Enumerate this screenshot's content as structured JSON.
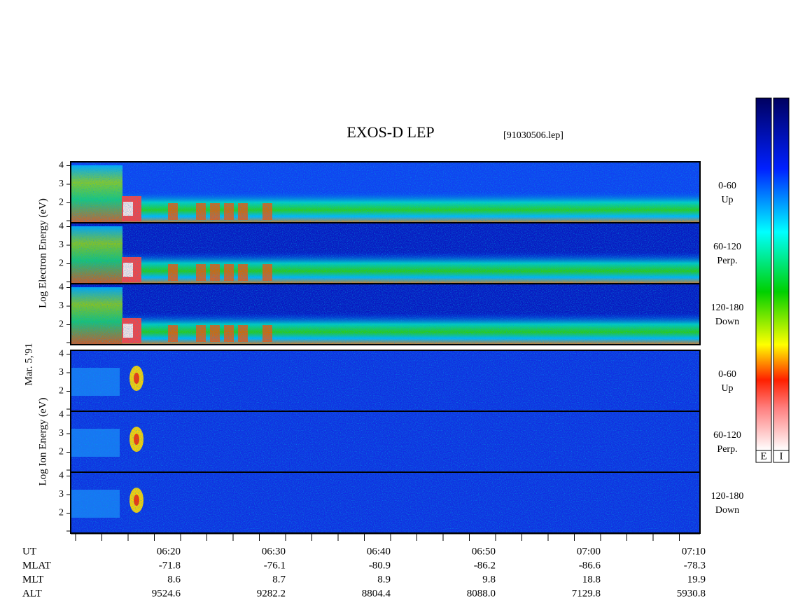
{
  "header": {
    "title": "EXOS-D LEP",
    "file": "[91030506.lep]",
    "date": "Mar. 5,'91"
  },
  "electron": {
    "ylabel": "Log   Electron   Energy (eV)",
    "panels": [
      {
        "angle": "0-60",
        "dir": "Up"
      },
      {
        "angle": "60-120",
        "dir": "Perp."
      },
      {
        "angle": "120-180",
        "dir": "Down"
      }
    ]
  },
  "ion": {
    "ylabel": "Log   Ion   Energy (eV)",
    "panels": [
      {
        "angle": "0-60",
        "dir": "Up"
      },
      {
        "angle": "60-120",
        "dir": "Perp."
      },
      {
        "angle": "120-180",
        "dir": "Down"
      }
    ]
  },
  "yticks": [
    4,
    3,
    2
  ],
  "time_axis": [
    {
      "name": "UT",
      "values": [
        "06:20",
        "06:30",
        "06:40",
        "06:50",
        "07:00",
        "07:10"
      ]
    },
    {
      "name": "MLAT",
      "values": [
        "-71.8",
        "-76.1",
        "-80.9",
        "-86.2",
        "-86.6",
        "-78.3"
      ]
    },
    {
      "name": "MLT",
      "values": [
        "8.6",
        "8.7",
        "8.9",
        "9.8",
        "18.8",
        "19.9"
      ]
    },
    {
      "name": "ALT",
      "values": [
        "9524.6",
        "9282.2",
        "8804.4",
        "8088.0",
        "7129.8",
        "5930.8"
      ]
    }
  ],
  "colorbars": [
    "E",
    "I"
  ]
}
